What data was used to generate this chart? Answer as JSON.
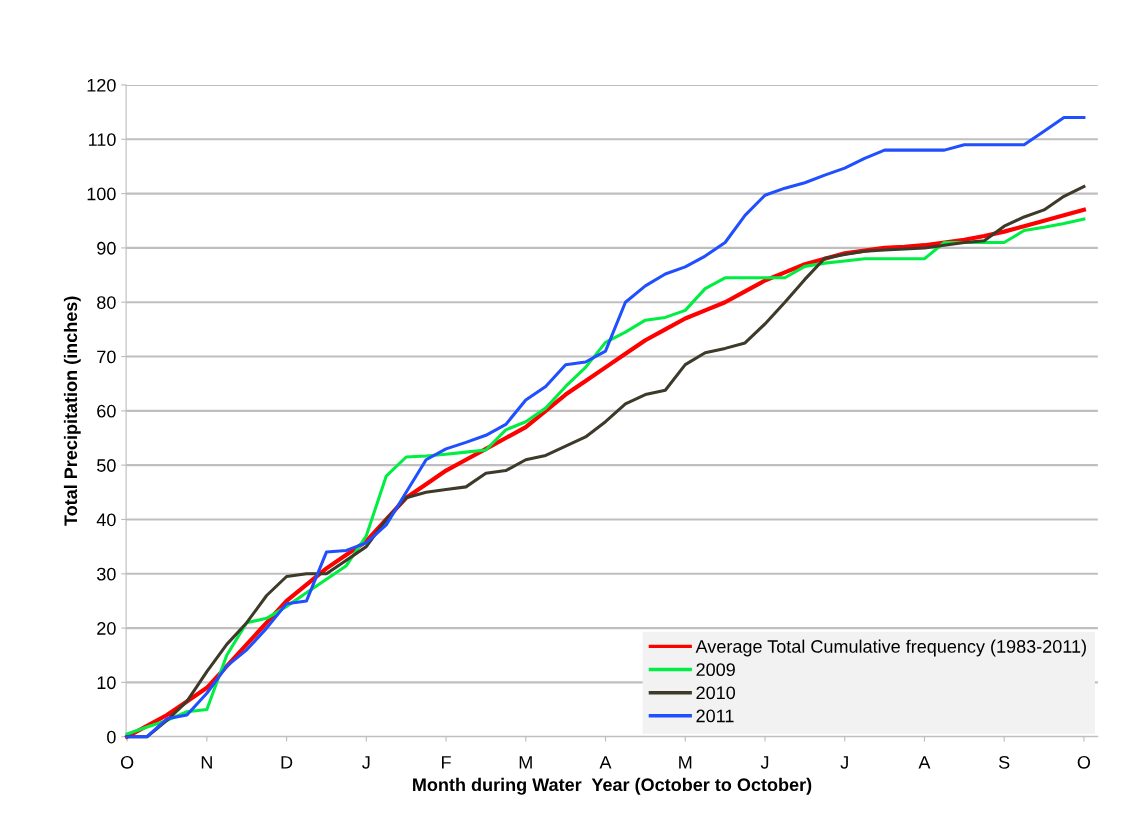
{
  "chart_data": {
    "type": "line",
    "xlabel": "Month during Water  Year (October to October)",
    "ylabel": "Total Precipitation (inches)",
    "categories": [
      "O",
      null,
      null,
      null,
      "N",
      null,
      null,
      null,
      "D",
      null,
      null,
      null,
      "J",
      null,
      null,
      null,
      "F",
      null,
      null,
      null,
      "M",
      null,
      null,
      null,
      "A",
      null,
      null,
      null,
      "M",
      null,
      null,
      null,
      "J",
      null,
      null,
      null,
      "J",
      null,
      null,
      null,
      "A",
      null,
      null,
      null,
      "S",
      null,
      null,
      null,
      "O"
    ],
    "ylim": [
      0,
      120
    ],
    "yticks": [
      0,
      10,
      20,
      30,
      40,
      50,
      60,
      70,
      80,
      90,
      100,
      110,
      120
    ],
    "grid": "y",
    "legend": "bottom right",
    "marker": "none",
    "line_style": "solid",
    "series": [
      {
        "name": "Average Total Cumulative frequency (1983-2011)",
        "color": "#ff0000",
        "values": [
          0,
          2,
          4,
          6.5,
          9,
          13,
          17,
          21,
          25,
          28,
          31,
          33.5,
          36,
          40,
          44,
          46.5,
          49,
          51,
          53,
          55,
          57,
          60,
          63,
          65.5,
          68,
          70.5,
          73,
          75,
          77,
          78.5,
          80,
          82,
          84,
          85.5,
          87,
          88,
          89,
          89.5,
          90,
          90.2,
          90.5,
          91,
          91.5,
          92.2,
          93,
          94,
          95,
          96,
          97
        ]
      },
      {
        "name": "2009",
        "color": "#00ee44",
        "values": [
          0.5,
          1.8,
          3,
          4.6,
          5,
          15,
          21,
          21.8,
          24,
          26.5,
          29,
          31.5,
          37,
          48,
          51.5,
          51.7,
          52,
          52.4,
          52.8,
          56.5,
          58,
          60.5,
          64.5,
          68,
          72.6,
          74.5,
          76.7,
          77.2,
          78.5,
          82.5,
          84.5,
          84.5,
          84.5,
          84.5,
          86.6,
          87.2,
          87.6,
          88,
          88,
          88,
          88,
          91,
          91,
          91,
          91,
          93.2,
          93.8,
          94.5,
          95.3
        ]
      },
      {
        "name": "2010",
        "color": "#3d3a2a",
        "values": [
          0,
          0,
          3,
          6.5,
          12,
          17,
          21,
          26,
          29.5,
          30,
          30,
          32.5,
          35,
          40,
          44,
          45,
          45.5,
          46,
          48.5,
          49,
          51,
          51.8,
          53.5,
          55.2,
          58,
          61.3,
          63,
          63.8,
          68.5,
          70.7,
          71.5,
          72.5,
          76,
          80,
          84.2,
          88.1,
          88.8,
          89.4,
          89.6,
          89.8,
          90,
          90.5,
          91,
          91.3,
          94,
          95.7,
          97,
          99.5,
          101.3
        ]
      },
      {
        "name": "2011",
        "color": "#1f4fff",
        "values": [
          0,
          0,
          3.3,
          4,
          8,
          13,
          16,
          20,
          24.5,
          25,
          34,
          34.3,
          35.7,
          39,
          45,
          51,
          53,
          54.2,
          55.5,
          57.5,
          62,
          64.5,
          68.5,
          69,
          71,
          80,
          83,
          85.2,
          86.5,
          88.5,
          91,
          96,
          99.7,
          101,
          102,
          103.4,
          104.7,
          106.5,
          108,
          108,
          108,
          108,
          109,
          109,
          109,
          109,
          111.5,
          114,
          114
        ]
      }
    ]
  }
}
